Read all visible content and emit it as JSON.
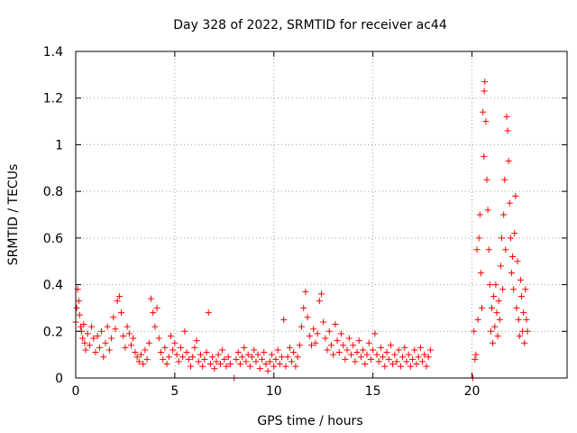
{
  "chart_data": {
    "type": "scatter",
    "title": "Day 328 of 2022, SRMTID for receiver ac44",
    "xlabel": "GPS time / hours",
    "ylabel": "SRMTID / TECUs",
    "xlim": [
      0,
      24.8
    ],
    "ylim": [
      0,
      1.4
    ],
    "xticks": [
      0,
      5,
      10,
      15,
      20
    ],
    "xtick_labels": [
      "0",
      "5",
      "10",
      "15",
      "20"
    ],
    "yticks": [
      0,
      0.2,
      0.4,
      0.6,
      0.8,
      1,
      1.2,
      1.4
    ],
    "ytick_labels": [
      "0",
      "0.2",
      "0.4",
      "0.6",
      "0.8",
      "1",
      "1.2",
      "1.4"
    ],
    "grid": true,
    "marker": "+",
    "series_color": "#ff0000",
    "series": [
      {
        "name": "SRMTID",
        "points": [
          [
            0.0,
            0.24
          ],
          [
            0.05,
            0.3
          ],
          [
            0.1,
            0.38
          ],
          [
            0.15,
            0.33
          ],
          [
            0.2,
            0.27
          ],
          [
            0.25,
            0.22
          ],
          [
            0.3,
            0.2
          ],
          [
            0.35,
            0.17
          ],
          [
            0.4,
            0.23
          ],
          [
            0.45,
            0.15
          ],
          [
            0.5,
            0.12
          ],
          [
            0.6,
            0.19
          ],
          [
            0.7,
            0.14
          ],
          [
            0.8,
            0.22
          ],
          [
            0.9,
            0.17
          ],
          [
            1.0,
            0.11
          ],
          [
            1.1,
            0.18
          ],
          [
            1.2,
            0.13
          ],
          [
            1.3,
            0.2
          ],
          [
            1.4,
            0.09
          ],
          [
            1.5,
            0.15
          ],
          [
            1.6,
            0.22
          ],
          [
            1.7,
            0.12
          ],
          [
            1.8,
            0.17
          ],
          [
            1.9,
            0.26
          ],
          [
            2.0,
            0.21
          ],
          [
            2.1,
            0.33
          ],
          [
            2.2,
            0.35
          ],
          [
            2.3,
            0.28
          ],
          [
            2.4,
            0.18
          ],
          [
            2.5,
            0.13
          ],
          [
            2.6,
            0.22
          ],
          [
            2.7,
            0.19
          ],
          [
            2.8,
            0.14
          ],
          [
            2.9,
            0.17
          ],
          [
            3.0,
            0.11
          ],
          [
            3.1,
            0.09
          ],
          [
            3.2,
            0.07
          ],
          [
            3.3,
            0.1
          ],
          [
            3.4,
            0.06
          ],
          [
            3.5,
            0.12
          ],
          [
            3.6,
            0.08
          ],
          [
            3.7,
            0.15
          ],
          [
            3.8,
            0.34
          ],
          [
            3.9,
            0.28
          ],
          [
            4.0,
            0.22
          ],
          [
            4.1,
            0.3
          ],
          [
            4.2,
            0.17
          ],
          [
            4.3,
            0.11
          ],
          [
            4.4,
            0.08
          ],
          [
            4.5,
            0.13
          ],
          [
            4.6,
            0.06
          ],
          [
            4.7,
            0.09
          ],
          [
            4.8,
            0.18
          ],
          [
            4.9,
            0.12
          ],
          [
            5.0,
            0.15
          ],
          [
            5.1,
            0.1
          ],
          [
            5.2,
            0.07
          ],
          [
            5.3,
            0.13
          ],
          [
            5.4,
            0.09
          ],
          [
            5.5,
            0.2
          ],
          [
            5.6,
            0.11
          ],
          [
            5.7,
            0.08
          ],
          [
            5.8,
            0.05
          ],
          [
            5.9,
            0.09
          ],
          [
            6.0,
            0.13
          ],
          [
            6.1,
            0.16
          ],
          [
            6.2,
            0.07
          ],
          [
            6.3,
            0.1
          ],
          [
            6.4,
            0.05
          ],
          [
            6.5,
            0.08
          ],
          [
            6.6,
            0.11
          ],
          [
            6.7,
            0.28
          ],
          [
            6.8,
            0.06
          ],
          [
            6.9,
            0.09
          ],
          [
            7.0,
            0.04
          ],
          [
            7.1,
            0.07
          ],
          [
            7.2,
            0.1
          ],
          [
            7.3,
            0.06
          ],
          [
            7.4,
            0.12
          ],
          [
            7.5,
            0.08
          ],
          [
            7.6,
            0.05
          ],
          [
            7.7,
            0.09
          ],
          [
            7.8,
            0.06
          ],
          [
            8.0,
            0.0
          ],
          [
            8.1,
            0.08
          ],
          [
            8.2,
            0.11
          ],
          [
            8.3,
            0.06
          ],
          [
            8.4,
            0.09
          ],
          [
            8.5,
            0.13
          ],
          [
            8.6,
            0.07
          ],
          [
            8.7,
            0.1
          ],
          [
            8.8,
            0.05
          ],
          [
            8.9,
            0.09
          ],
          [
            9.0,
            0.12
          ],
          [
            9.1,
            0.07
          ],
          [
            9.2,
            0.1
          ],
          [
            9.3,
            0.04
          ],
          [
            9.4,
            0.08
          ],
          [
            9.5,
            0.11
          ],
          [
            9.6,
            0.06
          ],
          [
            9.7,
            0.03
          ],
          [
            9.8,
            0.07
          ],
          [
            9.9,
            0.1
          ],
          [
            10.0,
            0.05
          ],
          [
            10.1,
            0.08
          ],
          [
            10.2,
            0.12
          ],
          [
            10.3,
            0.06
          ],
          [
            10.4,
            0.09
          ],
          [
            10.5,
            0.25
          ],
          [
            10.6,
            0.05
          ],
          [
            10.7,
            0.09
          ],
          [
            10.8,
            0.13
          ],
          [
            10.9,
            0.07
          ],
          [
            11.0,
            0.11
          ],
          [
            11.1,
            0.05
          ],
          [
            11.2,
            0.09
          ],
          [
            11.3,
            0.14
          ],
          [
            11.4,
            0.22
          ],
          [
            11.5,
            0.3
          ],
          [
            11.6,
            0.37
          ],
          [
            11.7,
            0.26
          ],
          [
            11.8,
            0.18
          ],
          [
            11.9,
            0.14
          ],
          [
            12.0,
            0.21
          ],
          [
            12.1,
            0.15
          ],
          [
            12.2,
            0.19
          ],
          [
            12.3,
            0.33
          ],
          [
            12.4,
            0.36
          ],
          [
            12.5,
            0.24
          ],
          [
            12.6,
            0.17
          ],
          [
            12.7,
            0.12
          ],
          [
            12.8,
            0.2
          ],
          [
            12.9,
            0.14
          ],
          [
            13.0,
            0.1
          ],
          [
            13.1,
            0.23
          ],
          [
            13.2,
            0.16
          ],
          [
            13.3,
            0.11
          ],
          [
            13.4,
            0.19
          ],
          [
            13.5,
            0.14
          ],
          [
            13.6,
            0.08
          ],
          [
            13.7,
            0.12
          ],
          [
            13.8,
            0.17
          ],
          [
            13.9,
            0.1
          ],
          [
            14.0,
            0.14
          ],
          [
            14.1,
            0.07
          ],
          [
            14.2,
            0.11
          ],
          [
            14.3,
            0.16
          ],
          [
            14.4,
            0.09
          ],
          [
            14.5,
            0.12
          ],
          [
            14.6,
            0.06
          ],
          [
            14.7,
            0.1
          ],
          [
            14.8,
            0.15
          ],
          [
            14.9,
            0.08
          ],
          [
            15.0,
            0.12
          ],
          [
            15.1,
            0.19
          ],
          [
            15.2,
            0.1
          ],
          [
            15.3,
            0.07
          ],
          [
            15.4,
            0.13
          ],
          [
            15.5,
            0.09
          ],
          [
            15.6,
            0.05
          ],
          [
            15.7,
            0.11
          ],
          [
            15.8,
            0.08
          ],
          [
            15.9,
            0.14
          ],
          [
            16.0,
            0.06
          ],
          [
            16.1,
            0.1
          ],
          [
            16.2,
            0.07
          ],
          [
            16.3,
            0.12
          ],
          [
            16.4,
            0.05
          ],
          [
            16.5,
            0.09
          ],
          [
            16.6,
            0.13
          ],
          [
            16.7,
            0.07
          ],
          [
            16.8,
            0.1
          ],
          [
            16.9,
            0.05
          ],
          [
            17.0,
            0.08
          ],
          [
            17.1,
            0.12
          ],
          [
            17.2,
            0.06
          ],
          [
            17.3,
            0.09
          ],
          [
            17.4,
            0.13
          ],
          [
            17.5,
            0.07
          ],
          [
            17.6,
            0.1
          ],
          [
            17.7,
            0.05
          ],
          [
            17.8,
            0.09
          ],
          [
            17.9,
            0.12
          ],
          [
            20.05,
            0.0
          ],
          [
            20.1,
            0.2
          ],
          [
            20.15,
            0.08
          ],
          [
            20.2,
            0.1
          ],
          [
            20.25,
            0.55
          ],
          [
            20.3,
            0.25
          ],
          [
            20.35,
            0.6
          ],
          [
            20.4,
            0.7
          ],
          [
            20.45,
            0.45
          ],
          [
            20.5,
            0.3
          ],
          [
            20.55,
            1.14
          ],
          [
            20.6,
            0.95
          ],
          [
            20.62,
            1.23
          ],
          [
            20.65,
            1.27
          ],
          [
            20.7,
            1.1
          ],
          [
            20.75,
            0.85
          ],
          [
            20.8,
            0.72
          ],
          [
            20.85,
            0.55
          ],
          [
            20.9,
            0.4
          ],
          [
            20.95,
            0.2
          ],
          [
            21.0,
            0.3
          ],
          [
            21.05,
            0.15
          ],
          [
            21.1,
            0.35
          ],
          [
            21.15,
            0.22
          ],
          [
            21.2,
            0.4
          ],
          [
            21.25,
            0.28
          ],
          [
            21.3,
            0.18
          ],
          [
            21.35,
            0.33
          ],
          [
            21.4,
            0.25
          ],
          [
            21.45,
            0.48
          ],
          [
            21.5,
            0.6
          ],
          [
            21.55,
            0.38
          ],
          [
            21.6,
            0.7
          ],
          [
            21.65,
            0.85
          ],
          [
            21.7,
            0.55
          ],
          [
            21.75,
            1.12
          ],
          [
            21.8,
            1.06
          ],
          [
            21.85,
            0.93
          ],
          [
            21.9,
            0.75
          ],
          [
            21.95,
            0.6
          ],
          [
            22.0,
            0.45
          ],
          [
            22.05,
            0.52
          ],
          [
            22.1,
            0.38
          ],
          [
            22.15,
            0.62
          ],
          [
            22.2,
            0.78
          ],
          [
            22.25,
            0.3
          ],
          [
            22.3,
            0.5
          ],
          [
            22.35,
            0.25
          ],
          [
            22.4,
            0.18
          ],
          [
            22.45,
            0.42
          ],
          [
            22.5,
            0.35
          ],
          [
            22.55,
            0.2
          ],
          [
            22.6,
            0.28
          ],
          [
            22.65,
            0.15
          ],
          [
            22.7,
            0.38
          ],
          [
            22.75,
            0.25
          ],
          [
            22.8,
            0.2
          ]
        ]
      }
    ]
  }
}
